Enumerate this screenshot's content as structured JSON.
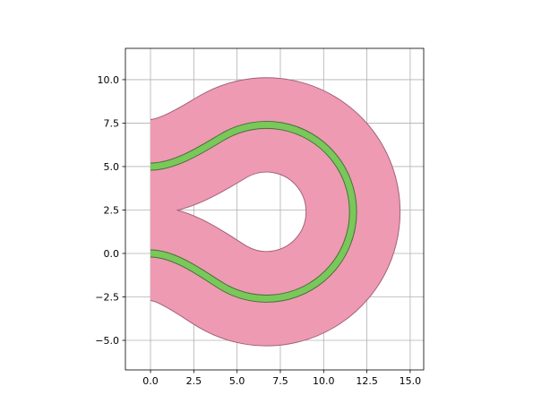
{
  "chart_data": {
    "type": "polygon",
    "grid": true,
    "xlim": [
      -1.45,
      15.78
    ],
    "ylim": [
      -6.7,
      11.8
    ],
    "xticks": [
      {
        "value": 0,
        "label": "0.0"
      },
      {
        "value": 2.5,
        "label": "2.5"
      },
      {
        "value": 5,
        "label": "5.0"
      },
      {
        "value": 7.5,
        "label": "7.5"
      },
      {
        "value": 10,
        "label": "10.0"
      },
      {
        "value": 12.5,
        "label": "12.5"
      },
      {
        "value": 15,
        "label": "15.0"
      }
    ],
    "yticks": [
      {
        "value": -5,
        "label": "−5.0"
      },
      {
        "value": -2.5,
        "label": "−2.5"
      },
      {
        "value": 0,
        "label": "0.0"
      },
      {
        "value": 2.5,
        "label": "2.5"
      },
      {
        "value": 5,
        "label": "5.0"
      },
      {
        "value": 7.5,
        "label": "7.5"
      },
      {
        "value": 10,
        "label": "10.0"
      }
    ]
  }
}
